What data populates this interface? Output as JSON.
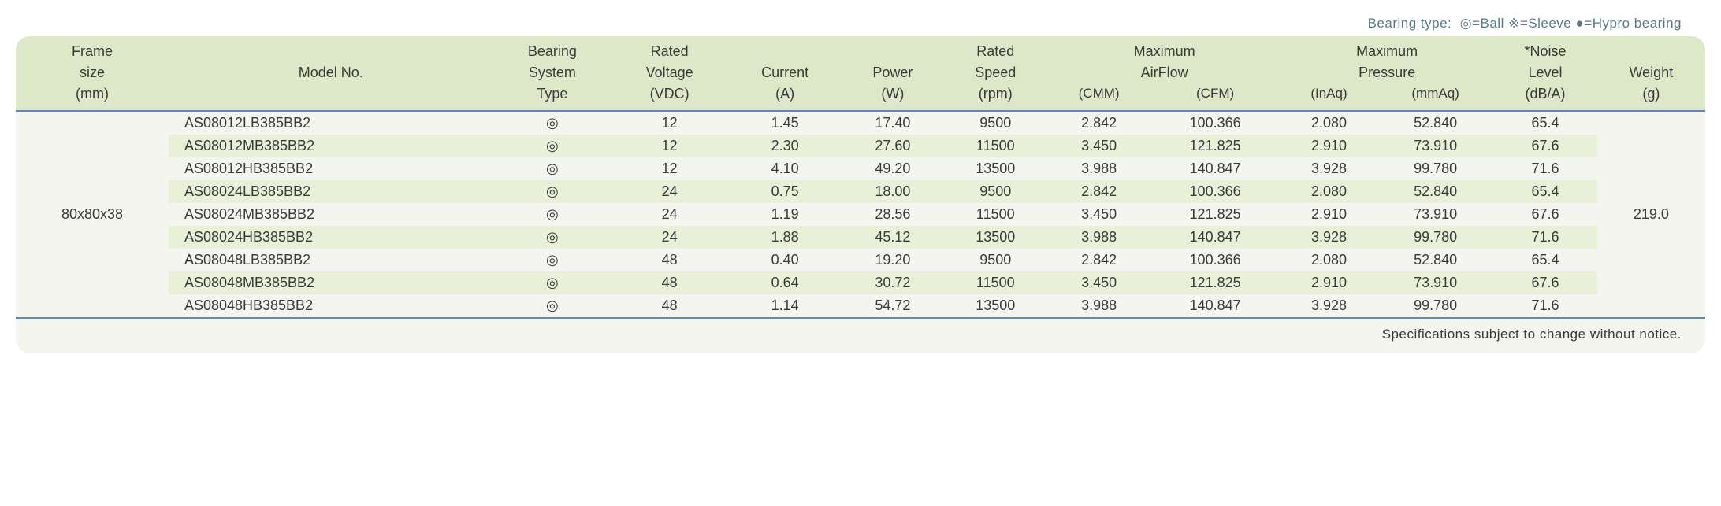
{
  "legend": {
    "prefix": "Bearing type:",
    "ball_symbol": "◎",
    "ball_label": "=Ball",
    "sleeve_symbol": "※",
    "sleeve_label": "=Sleeve",
    "hypro_symbol": "●",
    "hypro_label": "=Hypro bearing"
  },
  "headers": {
    "frame": {
      "l1": "Frame",
      "l2": "size",
      "l3": "(mm)"
    },
    "model": {
      "l1": "Model No."
    },
    "bearing": {
      "l1": "Bearing",
      "l2": "System",
      "l3": "Type"
    },
    "voltage": {
      "l1": "Rated",
      "l2": "Voltage",
      "l3": "(VDC)"
    },
    "current": {
      "l1": "Current",
      "l2": "(A)"
    },
    "power": {
      "l1": "Power",
      "l2": "(W)"
    },
    "speed": {
      "l1": "Rated",
      "l2": "Speed",
      "l3": "(rpm)"
    },
    "airflow": {
      "l1": "Maximum",
      "l2": "AirFlow",
      "cmm": "(CMM)",
      "cfm": "(CFM)"
    },
    "pressure": {
      "l1": "Maximum",
      "l2": "Pressure",
      "inaq": "(InAq)",
      "mmaq": "(mmAq)"
    },
    "noise": {
      "l1": "*Noise",
      "l2": "Level",
      "l3": "(dB/A)"
    },
    "weight": {
      "l1": "Weight",
      "l2": "(g)"
    }
  },
  "frame_size": "80x80x38",
  "weight": "219.0",
  "bearing_symbol": "◎",
  "footer": "Specifications subject to change without notice.",
  "rows": [
    {
      "model": "AS08012LB385BB2",
      "voltage": "12",
      "current": "1.45",
      "power": "17.40",
      "speed": "9500",
      "cmm": "2.842",
      "cfm": "100.366",
      "inaq": "2.080",
      "mmaq": "52.840",
      "noise": "65.4"
    },
    {
      "model": "AS08012MB385BB2",
      "voltage": "12",
      "current": "2.30",
      "power": "27.60",
      "speed": "11500",
      "cmm": "3.450",
      "cfm": "121.825",
      "inaq": "2.910",
      "mmaq": "73.910",
      "noise": "67.6"
    },
    {
      "model": "AS08012HB385BB2",
      "voltage": "12",
      "current": "4.10",
      "power": "49.20",
      "speed": "13500",
      "cmm": "3.988",
      "cfm": "140.847",
      "inaq": "3.928",
      "mmaq": "99.780",
      "noise": "71.6"
    },
    {
      "model": "AS08024LB385BB2",
      "voltage": "24",
      "current": "0.75",
      "power": "18.00",
      "speed": "9500",
      "cmm": "2.842",
      "cfm": "100.366",
      "inaq": "2.080",
      "mmaq": "52.840",
      "noise": "65.4"
    },
    {
      "model": "AS08024MB385BB2",
      "voltage": "24",
      "current": "1.19",
      "power": "28.56",
      "speed": "11500",
      "cmm": "3.450",
      "cfm": "121.825",
      "inaq": "2.910",
      "mmaq": "73.910",
      "noise": "67.6"
    },
    {
      "model": "AS08024HB385BB2",
      "voltage": "24",
      "current": "1.88",
      "power": "45.12",
      "speed": "13500",
      "cmm": "3.988",
      "cfm": "140.847",
      "inaq": "3.928",
      "mmaq": "99.780",
      "noise": "71.6"
    },
    {
      "model": "AS08048LB385BB2",
      "voltage": "48",
      "current": "0.40",
      "power": "19.20",
      "speed": "9500",
      "cmm": "2.842",
      "cfm": "100.366",
      "inaq": "2.080",
      "mmaq": "52.840",
      "noise": "65.4"
    },
    {
      "model": "AS08048MB385BB2",
      "voltage": "48",
      "current": "0.64",
      "power": "30.72",
      "speed": "11500",
      "cmm": "3.450",
      "cfm": "121.825",
      "inaq": "2.910",
      "mmaq": "73.910",
      "noise": "67.6"
    },
    {
      "model": "AS08048HB385BB2",
      "voltage": "48",
      "current": "1.14",
      "power": "54.72",
      "speed": "13500",
      "cmm": "3.988",
      "cfm": "140.847",
      "inaq": "3.928",
      "mmaq": "99.780",
      "noise": "71.6"
    }
  ],
  "colors": {
    "header_bg": "#dde8c9",
    "stripe_bg": "#e8f0d8",
    "plain_bg": "#f5f5ef",
    "border": "#5a8ab8",
    "legend_text": "#5a7a8a"
  }
}
